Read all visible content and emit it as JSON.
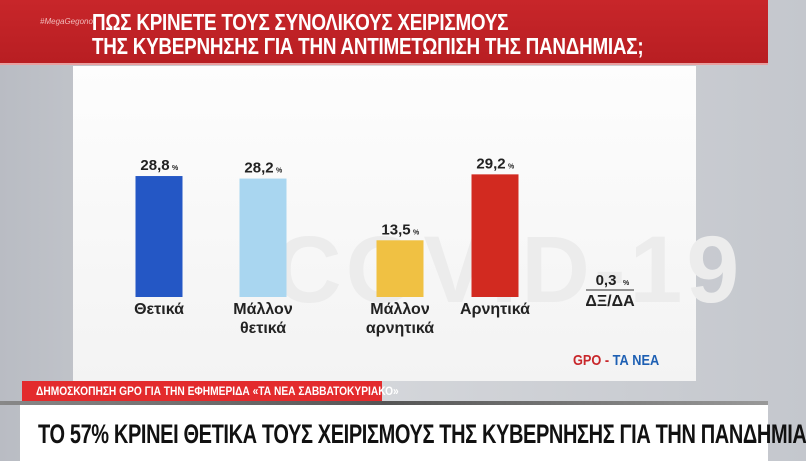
{
  "header": {
    "hashtag": "#MegaGegonot",
    "title_line1": "ΠΩΣ ΚΡΙΝΕΤΕ ΤΟΥΣ ΣΥΝΟΛΙΚΟΥΣ ΧΕΙΡΙΣΜΟΥΣ",
    "title_line2": "ΤΗΣ ΚΥΒΕΡΝΗΣΗΣ ΓΙΑ ΤΗΝ ΑΝΤΙΜΕΤΩΠΙΣΗ ΤΗΣ ΠΑΝΔΗΜΙΑΣ;"
  },
  "watermark": "COVID-19",
  "source": {
    "a": "GPO",
    "sep": " - ",
    "b": "ΤΑ ΝΕΑ"
  },
  "strip": "ΔΗΜΟΣΚΟΠΗΣΗ GPO ΓΙΑ ΤΗΝ ΕΦΗΜΕΡΙΔΑ «ΤΑ ΝΕΑ ΣΑΒΒΑΤΟΚΥΡΙΑΚΟ»",
  "headline": "ΤΟ 57% ΚΡΙΝΕΙ ΘΕΤΙΚΑ ΤΟΥΣ ΧΕΙΡΙΣΜΟΥΣ ΤΗΣ ΚΥΒΕΡΝΗΣΗΣ ΓΙΑ ΤΗΝ ΠΑΝΔΗΜΙΑ",
  "chart_data": {
    "type": "bar",
    "title": "ΠΩΣ ΚΡΙΝΕΤΕ ΤΟΥΣ ΣΥΝΟΛΙΚΟΥΣ ΧΕΙΡΙΣΜΟΥΣ ΤΗΣ ΚΥΒΕΡΝΗΣΗΣ ΓΙΑ ΤΗΝ ΑΝΤΙΜΕΤΩΠΙΣΗ ΤΗΣ ΠΑΝΔΗΜΙΑΣ;",
    "categories": [
      [
        "Θετικά"
      ],
      [
        "Μάλλον",
        "θετικά"
      ],
      [
        "Μάλλον",
        "αρνητικά"
      ],
      [
        "Αρνητικά"
      ],
      [
        "ΔΞ/ΔΑ"
      ]
    ],
    "values": [
      28.8,
      28.2,
      13.5,
      29.2,
      0.3
    ],
    "value_labels": [
      "28,8",
      "28,2",
      "13,5",
      "29,2",
      "0,3"
    ],
    "unit": "%",
    "colors": [
      "#2457c5",
      "#a9d6f0",
      "#f0c143",
      "#d22a20",
      null
    ],
    "grid": false,
    "xlabel": "",
    "ylabel": ""
  }
}
